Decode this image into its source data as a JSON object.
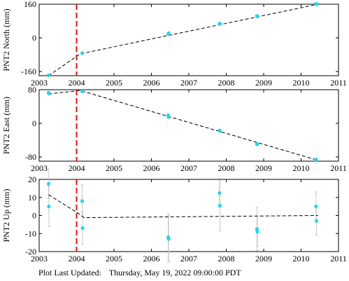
{
  "footer": {
    "label": "Plot Last Updated:",
    "timestamp": "Thursday, May 19, 2022 09:00:00 PDT"
  },
  "colors": {
    "points": "#22d4f0",
    "error_bars": "#c8c8c8",
    "fit_line": "#000000",
    "event_line": "#dd1111",
    "axes": "#000000"
  },
  "chart_data": [
    {
      "type": "scatter",
      "ylabel": "PNT2 North (mm)",
      "xlim": [
        2003,
        2011
      ],
      "ylim": [
        -180,
        160
      ],
      "xticks": [
        "2003",
        "2004",
        "2005",
        "2006",
        "2007",
        "2008",
        "2009",
        "2010",
        "2011"
      ],
      "yticks": [
        "160",
        "0",
        "-160"
      ],
      "ytick_values": [
        160,
        0,
        -160
      ],
      "event_x": 2004.0,
      "points": [
        {
          "x": 2003.25,
          "y": -178,
          "err": 2
        },
        {
          "x": 2004.15,
          "y": -73,
          "err": 2
        },
        {
          "x": 2006.45,
          "y": 18,
          "err": 2
        },
        {
          "x": 2006.46,
          "y": 22,
          "err": 2
        },
        {
          "x": 2007.82,
          "y": 68,
          "err": 2
        },
        {
          "x": 2007.84,
          "y": 66,
          "err": 2
        },
        {
          "x": 2008.82,
          "y": 104,
          "err": 2
        },
        {
          "x": 2008.84,
          "y": 102,
          "err": 2
        },
        {
          "x": 2010.4,
          "y": 162,
          "err": 2
        },
        {
          "x": 2010.42,
          "y": 160,
          "err": 2
        }
      ],
      "fit": [
        [
          2003.25,
          -180
        ],
        [
          2004.1,
          -76
        ],
        [
          2010.45,
          160
        ]
      ]
    },
    {
      "type": "scatter",
      "ylabel": "PNT2 East (mm)",
      "xlim": [
        2003,
        2011
      ],
      "ylim": [
        -90,
        80
      ],
      "xticks": [
        "2003",
        "2004",
        "2005",
        "2006",
        "2007",
        "2008",
        "2009",
        "2010",
        "2011"
      ],
      "yticks": [
        "80",
        "0",
        "-80"
      ],
      "ytick_values": [
        80,
        0,
        -80
      ],
      "event_x": 2004.0,
      "points": [
        {
          "x": 2003.25,
          "y": 73,
          "err": 2
        },
        {
          "x": 2003.26,
          "y": 71,
          "err": 2
        },
        {
          "x": 2004.15,
          "y": 76,
          "err": 2
        },
        {
          "x": 2006.45,
          "y": 19,
          "err": 2
        },
        {
          "x": 2006.46,
          "y": 15,
          "err": 2
        },
        {
          "x": 2007.82,
          "y": -17,
          "err": 2
        },
        {
          "x": 2007.83,
          "y": -18,
          "err": 2
        },
        {
          "x": 2008.82,
          "y": -49,
          "err": 2
        },
        {
          "x": 2008.83,
          "y": -50,
          "err": 2
        },
        {
          "x": 2010.4,
          "y": -86,
          "err": 2
        },
        {
          "x": 2010.41,
          "y": -88,
          "err": 2
        }
      ],
      "fit": [
        [
          2003.25,
          70
        ],
        [
          2004.1,
          78
        ],
        [
          2010.45,
          -88
        ]
      ]
    },
    {
      "type": "scatter",
      "ylabel": "PNT2 Up (mm)",
      "xlim": [
        2003,
        2011
      ],
      "ylim": [
        -20,
        20
      ],
      "xticks": [
        "2003",
        "2004",
        "2005",
        "2006",
        "2007",
        "2008",
        "2009",
        "2010",
        "2011"
      ],
      "yticks": [
        "20",
        "10",
        "0",
        "-10",
        "-20"
      ],
      "ytick_values": [
        20,
        10,
        0,
        -10,
        -20
      ],
      "event_x": 2004.0,
      "points": [
        {
          "x": 2003.25,
          "y": 17.5,
          "err": 8
        },
        {
          "x": 2003.26,
          "y": 5,
          "err": 11
        },
        {
          "x": 2004.15,
          "y": 8,
          "err": 9
        },
        {
          "x": 2004.16,
          "y": -7,
          "err": 9
        },
        {
          "x": 2006.45,
          "y": -12,
          "err": 13
        },
        {
          "x": 2006.46,
          "y": -13,
          "err": 13
        },
        {
          "x": 2007.82,
          "y": 12.5,
          "err": 8
        },
        {
          "x": 2007.83,
          "y": 5.5,
          "err": 14
        },
        {
          "x": 2008.82,
          "y": -7.5,
          "err": 12
        },
        {
          "x": 2008.83,
          "y": -9,
          "err": 8
        },
        {
          "x": 2010.4,
          "y": 5,
          "err": 8
        },
        {
          "x": 2010.41,
          "y": -3,
          "err": 8
        }
      ],
      "fit": [
        [
          2003.25,
          11.5
        ],
        [
          2004.1,
          0.5
        ],
        [
          2004.2,
          -1.2
        ],
        [
          2010.45,
          0
        ]
      ]
    }
  ]
}
